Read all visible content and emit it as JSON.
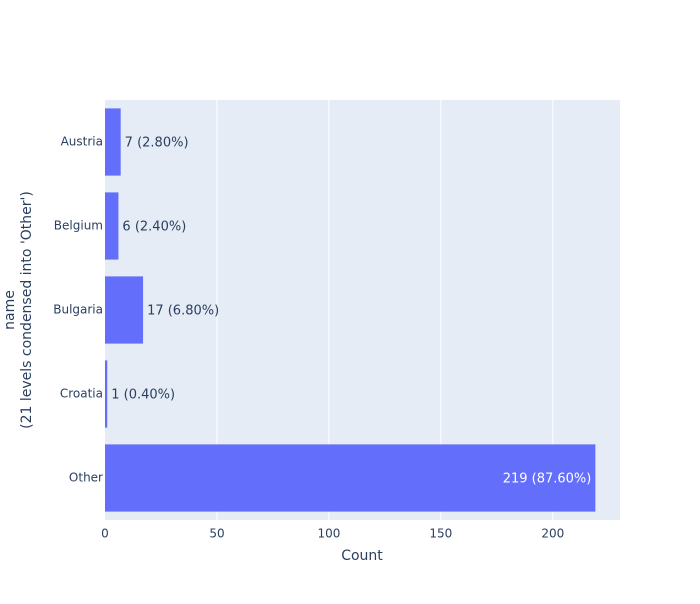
{
  "chart_data": {
    "type": "bar",
    "orientation": "horizontal",
    "categories": [
      "Austria",
      "Belgium",
      "Bulgaria",
      "Croatia",
      "Other"
    ],
    "values": [
      7,
      6,
      17,
      1,
      219
    ],
    "value_labels": [
      "7 (2.80%)",
      "6 (2.40%)",
      "17 (6.80%)",
      "1 (0.40%)",
      "219 (87.60%)"
    ],
    "xlabel": "Count",
    "ylabel_lines": [
      "name",
      "(21 levels condensed into 'Other')"
    ],
    "xlim": [
      0,
      230
    ],
    "xticks": [
      0,
      50,
      100,
      150,
      200
    ],
    "xtick_labels": [
      "0",
      "50",
      "100",
      "150",
      "200"
    ],
    "grid": true,
    "colors": {
      "bar": "#636efa",
      "plot_background": "#e5ecf6",
      "grid": "#ffffff",
      "text": "#2a3f5f",
      "inside_label": "#ffffff"
    }
  }
}
